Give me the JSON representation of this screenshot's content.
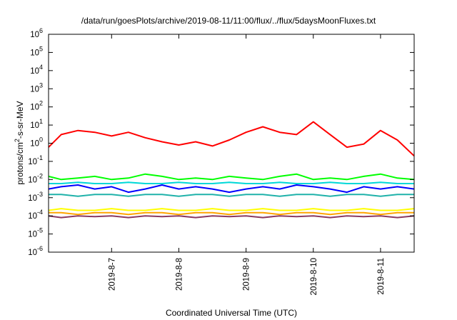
{
  "chart_data": {
    "type": "line",
    "title": "/data/run/goesPlots/archive/2019-08-11/11:00/flux/../flux/5daysMoonFluxes.txt",
    "xlabel": "Coordinated Universal Time (UTC)",
    "ylabel": {
      "prefix": "protons/cm",
      "sup": "2",
      "suffix": "-s-sr-MeV"
    },
    "y_scale": "log",
    "ylim": [
      1e-06,
      1000000.0
    ],
    "y_ticks": [
      {
        "value": 1000000.0,
        "base": "10",
        "exp": "6"
      },
      {
        "value": 100000.0,
        "base": "10",
        "exp": "5"
      },
      {
        "value": 10000.0,
        "base": "10",
        "exp": "4"
      },
      {
        "value": 1000.0,
        "base": "10",
        "exp": "3"
      },
      {
        "value": 100.0,
        "base": "10",
        "exp": "2"
      },
      {
        "value": 10.0,
        "base": "10",
        "exp": "1"
      },
      {
        "value": 1.0,
        "base": "10",
        "exp": "0"
      },
      {
        "value": 0.1,
        "base": "10",
        "exp": "-1"
      },
      {
        "value": 0.01,
        "base": "10",
        "exp": "-2"
      },
      {
        "value": 0.001,
        "base": "10",
        "exp": "-3"
      },
      {
        "value": 0.0001,
        "base": "10",
        "exp": "-4"
      },
      {
        "value": 1e-05,
        "base": "10",
        "exp": "-5"
      },
      {
        "value": 1e-06,
        "base": "10",
        "exp": "-6"
      }
    ],
    "xlim": [
      "2019-08-06T01:30",
      "2019-08-11T12:00"
    ],
    "x_ticks": [
      {
        "value": "2019-08-07T00:00",
        "label": "2019-8-7"
      },
      {
        "value": "2019-08-08T00:00",
        "label": "2019-8-8"
      },
      {
        "value": "2019-08-09T00:00",
        "label": "2019-8-9"
      },
      {
        "value": "2019-08-10T00:00",
        "label": "2019-8-10"
      },
      {
        "value": "2019-08-11T00:00",
        "label": "2019-8-11"
      }
    ],
    "grid": false,
    "legend": "none",
    "x": [
      "2019-08-06T01:30",
      "2019-08-06T06:00",
      "2019-08-06T12:00",
      "2019-08-06T18:00",
      "2019-08-07T00:00",
      "2019-08-07T06:00",
      "2019-08-07T12:00",
      "2019-08-07T18:00",
      "2019-08-08T00:00",
      "2019-08-08T06:00",
      "2019-08-08T12:00",
      "2019-08-08T18:00",
      "2019-08-09T00:00",
      "2019-08-09T06:00",
      "2019-08-09T12:00",
      "2019-08-09T18:00",
      "2019-08-10T00:00",
      "2019-08-10T06:00",
      "2019-08-10T12:00",
      "2019-08-10T18:00",
      "2019-08-11T00:00",
      "2019-08-11T06:00",
      "2019-08-11T12:00"
    ],
    "series": [
      {
        "color": "#ff0000",
        "values": [
          0.6,
          3.0,
          5.0,
          4.0,
          2.5,
          4.0,
          2.0,
          1.2,
          0.8,
          1.2,
          0.7,
          1.5,
          4.0,
          8.0,
          4.0,
          3.0,
          15.0,
          3.0,
          0.6,
          0.9,
          5.0,
          1.5,
          0.2
        ]
      },
      {
        "color": "#00ff00",
        "values": [
          0.015,
          0.01,
          0.012,
          0.015,
          0.01,
          0.012,
          0.02,
          0.015,
          0.01,
          0.012,
          0.01,
          0.015,
          0.012,
          0.01,
          0.015,
          0.02,
          0.01,
          0.012,
          0.01,
          0.015,
          0.02,
          0.012,
          0.01
        ]
      },
      {
        "color": "#00d8d8",
        "values": [
          0.006,
          0.006,
          0.007,
          0.006,
          0.006,
          0.007,
          0.006,
          0.006,
          0.007,
          0.006,
          0.006,
          0.007,
          0.006,
          0.006,
          0.007,
          0.006,
          0.006,
          0.007,
          0.006,
          0.006,
          0.007,
          0.006,
          0.006
        ]
      },
      {
        "color": "#0000ff",
        "values": [
          0.003,
          0.004,
          0.005,
          0.003,
          0.004,
          0.002,
          0.003,
          0.005,
          0.003,
          0.004,
          0.003,
          0.002,
          0.003,
          0.004,
          0.003,
          0.005,
          0.004,
          0.003,
          0.002,
          0.004,
          0.003,
          0.004,
          0.003
        ]
      },
      {
        "color": "#20b2aa",
        "values": [
          0.0015,
          0.0015,
          0.0012,
          0.0015,
          0.0015,
          0.0012,
          0.0015,
          0.0015,
          0.0012,
          0.0015,
          0.0015,
          0.0012,
          0.0015,
          0.0015,
          0.0012,
          0.0015,
          0.0015,
          0.0012,
          0.0015,
          0.0015,
          0.0012,
          0.0015,
          0.0015
        ]
      },
      {
        "color": "#ffff00",
        "values": [
          0.0002,
          0.00025,
          0.0002,
          0.0002,
          0.00025,
          0.0002,
          0.0002,
          0.00025,
          0.0002,
          0.0002,
          0.00025,
          0.0002,
          0.0002,
          0.00025,
          0.0002,
          0.0002,
          0.00025,
          0.0002,
          0.0002,
          0.00025,
          0.0002,
          0.0002,
          0.00025
        ]
      },
      {
        "color": "#ffa500",
        "values": [
          0.00015,
          0.00015,
          0.00012,
          0.00015,
          0.00015,
          0.00012,
          0.00015,
          0.00015,
          0.00012,
          0.00015,
          0.00015,
          0.00012,
          0.00015,
          0.00015,
          0.00012,
          0.00015,
          0.00015,
          0.00012,
          0.00015,
          0.00015,
          0.00012,
          0.00015,
          0.00015
        ]
      },
      {
        "color": "#8b3a62",
        "values": [
          0.0001,
          8e-05,
          0.0001,
          9e-05,
          0.0001,
          8e-05,
          0.0001,
          9e-05,
          0.0001,
          8e-05,
          0.0001,
          9e-05,
          0.0001,
          8e-05,
          0.0001,
          9e-05,
          0.0001,
          8e-05,
          0.0001,
          9e-05,
          0.0001,
          8e-05,
          0.0001
        ]
      }
    ]
  }
}
